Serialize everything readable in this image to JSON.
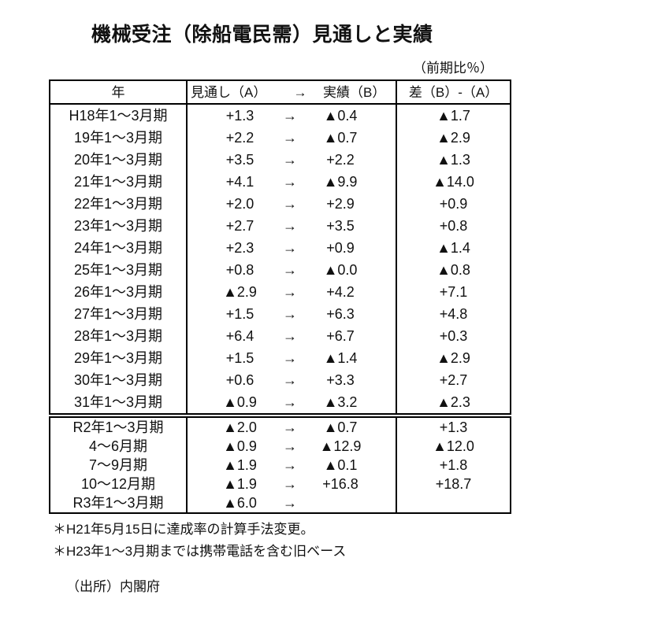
{
  "title": "機械受注（除船電民需）見通しと実績",
  "unit_note": "（前期比％）",
  "table": {
    "headers": {
      "year": "年",
      "forecast": "見通し（A）",
      "arrow": "→",
      "actual": "実績（B）",
      "diff": "差（B）-（A）"
    },
    "rows_block1": [
      {
        "year": "H18年1～3月期",
        "forecast": "+1.3",
        "arrow": "→",
        "actual": "▲0.4",
        "diff": "▲1.7"
      },
      {
        "year": "19年1～3月期",
        "forecast": "+2.2",
        "arrow": "→",
        "actual": "▲0.7",
        "diff": "▲2.9"
      },
      {
        "year": "20年1～3月期",
        "forecast": "+3.5",
        "arrow": "→",
        "actual": "+2.2",
        "diff": "▲1.3"
      },
      {
        "year": "21年1～3月期",
        "forecast": "+4.1",
        "arrow": "→",
        "actual": "▲9.9",
        "diff": "▲14.0"
      },
      {
        "year": "22年1～3月期",
        "forecast": "+2.0",
        "arrow": "→",
        "actual": "+2.9",
        "diff": "+0.9"
      },
      {
        "year": "23年1～3月期",
        "forecast": "+2.7",
        "arrow": "→",
        "actual": "+3.5",
        "diff": "+0.8"
      },
      {
        "year": "24年1～3月期",
        "forecast": "+2.3",
        "arrow": "→",
        "actual": "+0.9",
        "diff": "▲1.4"
      },
      {
        "year": "25年1～3月期",
        "forecast": "+0.8",
        "arrow": "→",
        "actual": "▲0.0",
        "diff": "▲0.8"
      },
      {
        "year": "26年1～3月期",
        "forecast": "▲2.9",
        "arrow": "→",
        "actual": "+4.2",
        "diff": "+7.1"
      },
      {
        "year": "27年1～3月期",
        "forecast": "+1.5",
        "arrow": "→",
        "actual": "+6.3",
        "diff": "+4.8"
      },
      {
        "year": "28年1～3月期",
        "forecast": "+6.4",
        "arrow": "→",
        "actual": "+6.7",
        "diff": "+0.3"
      },
      {
        "year": "29年1～3月期",
        "forecast": "+1.5",
        "arrow": "→",
        "actual": "▲1.4",
        "diff": "▲2.9"
      },
      {
        "year": "30年1～3月期",
        "forecast": "+0.6",
        "arrow": "→",
        "actual": "+3.3",
        "diff": "+2.7"
      },
      {
        "year": "31年1～3月期",
        "forecast": "▲0.9",
        "arrow": "→",
        "actual": "▲3.2",
        "diff": "▲2.3"
      }
    ],
    "rows_block2": [
      {
        "year": "R2年1～3月期",
        "forecast": "▲2.0",
        "arrow": "→",
        "actual": "▲0.7",
        "diff": "+1.3"
      },
      {
        "year": "4～6月期",
        "forecast": "▲0.9",
        "arrow": "→",
        "actual": "▲12.9",
        "diff": "▲12.0"
      },
      {
        "year": "7～9月期",
        "forecast": "▲1.9",
        "arrow": "→",
        "actual": "▲0.1",
        "diff": "+1.8"
      },
      {
        "year": "10～12月期",
        "forecast": "▲1.9",
        "arrow": "→",
        "actual": "+16.8",
        "diff": "+18.7"
      },
      {
        "year": "R3年1～3月期",
        "forecast": "▲6.0",
        "arrow": "→",
        "actual": "",
        "diff": ""
      }
    ]
  },
  "notes": [
    "＊H21年5月15日に達成率の計算手法変更。",
    "＊H23年1～3月期までは携帯電話を含む旧ベース"
  ],
  "source": "（出所）内閣府"
}
